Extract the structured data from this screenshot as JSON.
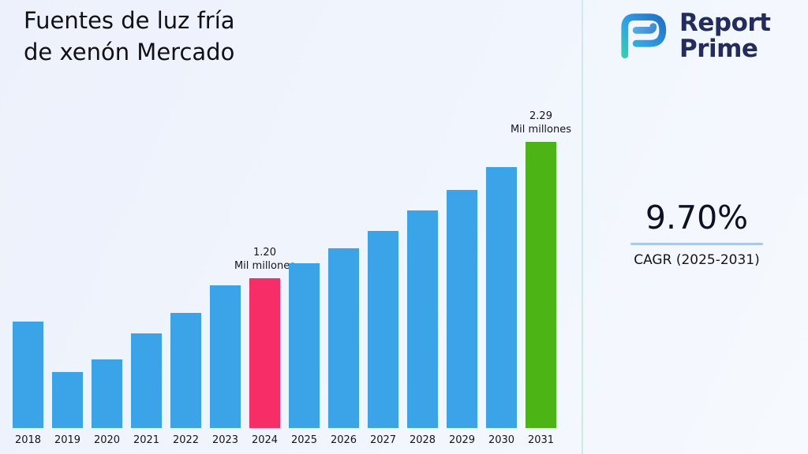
{
  "title": "Fuentes de luz fría de xenón Mercado",
  "logo": {
    "line1": "Report",
    "line2": "Prime"
  },
  "stats": {
    "cagr_value": "9.70%",
    "cagr_label": "CAGR (2025-2031)"
  },
  "chart_data": {
    "type": "bar",
    "title": "Fuentes de luz fría de xenón Mercado",
    "unit": "Mil millones",
    "categories": [
      "2018",
      "2019",
      "2020",
      "2021",
      "2022",
      "2023",
      "2024",
      "2025",
      "2026",
      "2027",
      "2028",
      "2029",
      "2030",
      "2031"
    ],
    "values": [
      0.85,
      0.45,
      0.55,
      0.76,
      0.92,
      1.14,
      1.2,
      1.32,
      1.44,
      1.58,
      1.74,
      1.91,
      2.09,
      2.29
    ],
    "bar_color": "#3BA3E8",
    "highlight_colors": {
      "2024": "#F62D66",
      "2031": "#4CB415"
    },
    "annotations": [
      {
        "category": "2024",
        "lines": [
          "1.20",
          "Mil millones"
        ]
      },
      {
        "category": "2031",
        "lines": [
          "2.29",
          "Mil millones"
        ]
      }
    ],
    "xlabel": "",
    "ylabel": "",
    "ylim": [
      0,
      2.4
    ],
    "grid": false,
    "legend": false
  }
}
